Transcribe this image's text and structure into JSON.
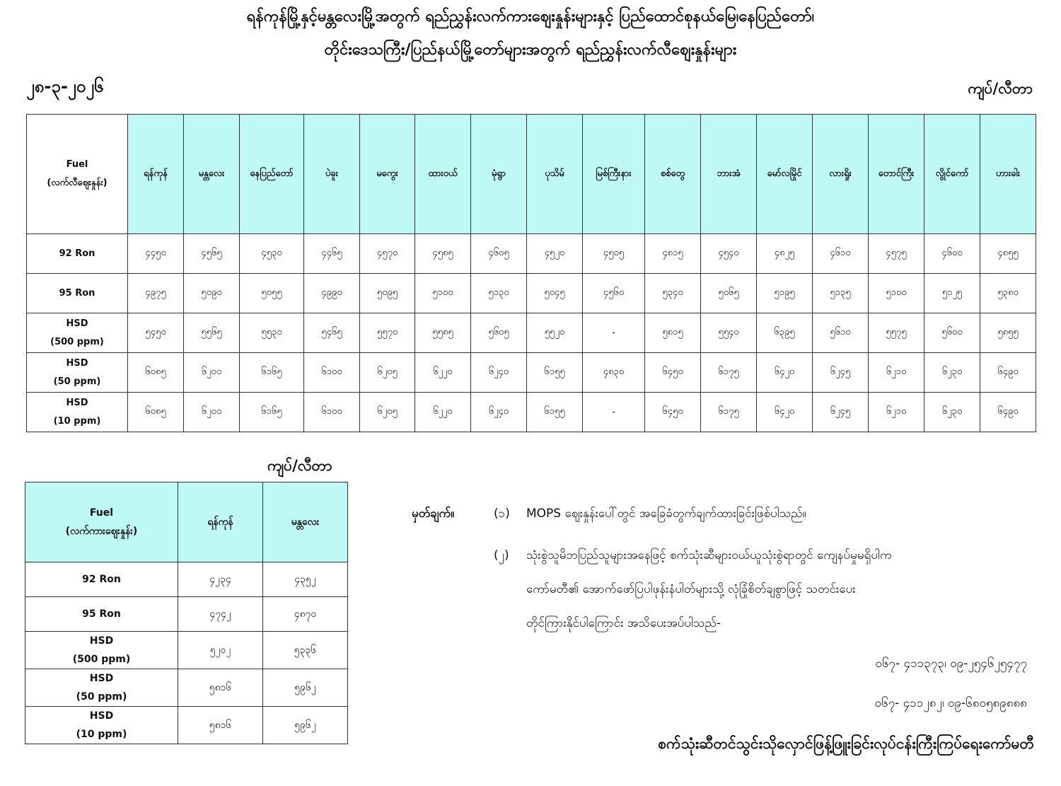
{
  "title_line1": "ရန်ကုန်မြို့နှင့်မန္တလေးမြို့အတွက် ရည်ညွှန်းလက်ကားဈေးနှုန်းများနှင့် ပြည်ထောင်စုနယ်မြေ၊နေပြည်တော်၊",
  "title_line2": "တိုင်းဒေသကြီး/ပြည်နယ်မြို့တော်များအတွက် ရည်ညွှန်းလက်လီဈေးနှုန်းများ",
  "date": "၂၈-၃-၂၀၂၆",
  "unit": "ကျပ်/လီတာ",
  "retail": {
    "fuel_label": "Fuel",
    "fuel_sublabel": "(လက်လီဈေးနှုန်း)",
    "cities": [
      "ရန်ကုန်",
      "မန္တလေး",
      "နေပြည်တော်",
      "ပဲခူး",
      "မကွေး",
      "ထားဝယ်",
      "မုံရွာ",
      "ပုသိမ်",
      "မြစ်ကြီးနား",
      "စစ်တွေ",
      "ဘားအံ",
      "မော်လမြိုင်",
      "လားရှိုး",
      "တောင်ကြီး",
      "လွိုင်ကော်",
      "ဟားခါး"
    ],
    "rows": [
      {
        "fuel": "92 Ron",
        "sub": "",
        "values": [
          "၄၄၅၀",
          "၄၅၆၅",
          "၄၅၃၀",
          "၄၄၆၅",
          "၄၅၇၀",
          "၄၅၈၅",
          "၄၆၀၅",
          "၄၅၂၀",
          "၄၅၀၅",
          "၄၈၁၅",
          "၄၅၄၀",
          "၄၈၂၅",
          "၄၆၁၀",
          "၄၅၇၅",
          "၄၆၀၀",
          "၄၈၅၅"
        ]
      },
      {
        "fuel": "95 Ron",
        "sub": "",
        "values": [
          "၄၉၇၅",
          "၅၀၉၀",
          "၅၀၅၅",
          "၄၉၉၀",
          "၅၀၉၅",
          "၅၁၀၀",
          "၅၁၃၀",
          "၅၀၄၅",
          "၄၅၆၀",
          "၅၃၄၀",
          "၅၀၆၅",
          "၅၁၉၅",
          "၅၁၃၅",
          "၅၁၀၀",
          "၅၁၂၅",
          "၅၃၈၀"
        ]
      },
      {
        "fuel": "HSD",
        "sub": "(500 ppm)",
        "values": [
          "၅၄၅၀",
          "၅၅၆၅",
          "၅၅၃၀",
          "၅၄၆၅",
          "၅၅၇၀",
          "၅၅၈၅",
          "၅၆၀၅",
          "၅၅၂၀",
          "-",
          "၅၈၁၅",
          "၅၅၄၀",
          "၆၃၉၅",
          "၅၆၁၀",
          "၅၅၇၅",
          "၅၆၀၀",
          "၅၈၅၅"
        ]
      },
      {
        "fuel": "HSD",
        "sub": "(50 ppm)",
        "values": [
          "၆၀၈၅",
          "၆၂၀၀",
          "၆၁၆၅",
          "၆၁၀၀",
          "၆၂၀၅",
          "၆၂၂၀",
          "၆၂၄၀",
          "၆၁၅၅",
          "၄၈၃၀",
          "၆၄၅၀",
          "၆၁၇၅",
          "၆၄၂၀",
          "၆၂၄၅",
          "၆၂၁၀",
          "၆၂၃၀",
          "၆၄၉၀"
        ]
      },
      {
        "fuel": "HSD",
        "sub": "(10 ppm)",
        "values": [
          "၆၀၈၅",
          "၆၂၀၀",
          "၆၁၆၅",
          "၆၁၀၀",
          "၆၂၀၅",
          "၆၂၂၀",
          "၆၂၄၀",
          "၆၁၅၅",
          "-",
          "၆၄၅၀",
          "၆၁၇၅",
          "၆၄၂၀",
          "၆၂၄၅",
          "၆၂၁၀",
          "၆၂၃၀",
          "၆၄၉၀"
        ]
      }
    ]
  },
  "wholesale": {
    "unit": "ကျပ်/လီတာ",
    "fuel_label": "Fuel",
    "fuel_sublabel": "(လက်ကားဈေးနှုန်း)",
    "cities": [
      "ရန်ကုန်",
      "မန္တလေး"
    ],
    "rows": [
      {
        "fuel": "92 Ron",
        "sub": "",
        "values": [
          "၄၂၃၄",
          "၄၃၅၂"
        ]
      },
      {
        "fuel": "95 Ron",
        "sub": "",
        "values": [
          "၄၇၄၂",
          "၄၈၇၀"
        ]
      },
      {
        "fuel": "HSD",
        "sub": "(500 ppm)",
        "values": [
          "၅၂၀၂",
          "၅၃၃၆"
        ]
      },
      {
        "fuel": "HSD",
        "sub": "(50 ppm)",
        "values": [
          "၅၈၁၆",
          "၅၉၆၂"
        ]
      },
      {
        "fuel": "HSD",
        "sub": "(10 ppm)",
        "values": [
          "၅၈၁၆",
          "၅၉၆၂"
        ]
      }
    ]
  },
  "notes": {
    "label": "မှတ်ချက်။",
    "n1_num": "(၁)",
    "n1": "MOPS ဈေးနှုန်းပေါ်တွင် အခြေခံတွက်ချက်ထားခြင်းဖြစ်ပါသည်။",
    "n2_num": "(၂)",
    "n2_l1": "သုံးစွဲသူမိဘပြည်သူများအနေဖြင့် စက်သုံးဆီများဝယ်ယူသုံးစွဲရာတွင် ကျေနပ်မှုမရှိပါက",
    "n2_l2": "ကော်မတီ၏ အောက်ဖော်ပြပါဖုန်းနံပါတ်များသို့ လုံခြုံစိတ်ချစွာဖြင့် သတင်းပေး",
    "n2_l3": "တိုင်ကြားနိုင်ပါကြောင်း အသိပေးအပ်ပါသည်-",
    "phone1": "၀၆၇- ၄၁၁၃၇၃၊ ၀၉-၂၅၄၆၂၅၄၇၇",
    "phone2": "၀၆၇- ၄၁၁၂၈၂၊ ၀၉-၆၈၀၅၈၉၈၈၈"
  },
  "footer": "စက်သုံးဆီတင်သွင်းသိုလှောင်ဖြန့်ဖြူးခြင်းလုပ်ငန်းကြီးကြပ်ရေးကော်မတီ",
  "colors": {
    "header_bg": "#bff9f6",
    "border": "#333333"
  }
}
